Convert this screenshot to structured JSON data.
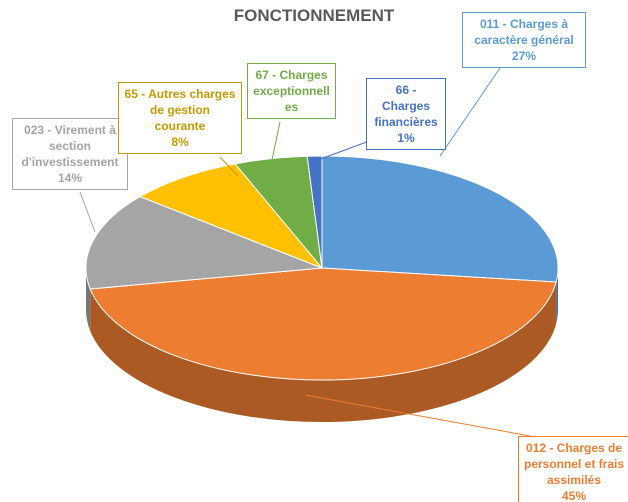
{
  "chart_data": {
    "type": "pie3d",
    "title": "FONCTIONNEMENT",
    "categories": [
      "011 - Charges à caractère général",
      "012 - Charges de personnel et frais assimilés",
      "023 - Virement à section d'investissement",
      "65 - Autres charges de gestion courante",
      "67 - Charges exceptionnelles",
      "66 - Charges financières"
    ],
    "values": [
      27,
      45,
      14,
      8,
      5,
      1
    ],
    "value_labels": [
      "27%",
      "45%",
      "14%",
      "8%",
      null,
      "1%"
    ],
    "colors": [
      "#5b9bd5",
      "#ed7d31",
      "#a5a5a5",
      "#ffc000",
      "#70ad47",
      "#4472c4"
    ]
  }
}
